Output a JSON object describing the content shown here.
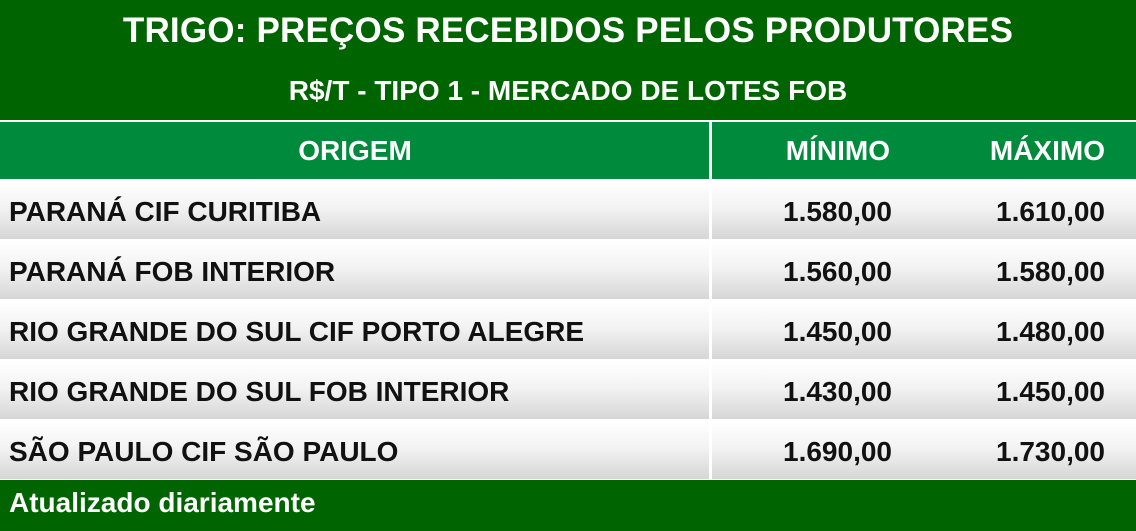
{
  "header": {
    "title": "TRIGO: PREÇOS RECEBIDOS PELOS PRODUTORES",
    "subtitle": "R$/T - TIPO 1 - MERCADO DE LOTES FOB"
  },
  "table": {
    "columns": [
      "ORIGEM",
      "MÍNIMO",
      "MÁXIMO"
    ],
    "rows": [
      {
        "origem": "PARANÁ CIF CURITIBA",
        "minimo": "1.580,00",
        "maximo": "1.610,00"
      },
      {
        "origem": "PARANÁ FOB INTERIOR",
        "minimo": "1.560,00",
        "maximo": "1.580,00"
      },
      {
        "origem": "RIO GRANDE DO SUL CIF PORTO ALEGRE",
        "minimo": "1.450,00",
        "maximo": "1.480,00"
      },
      {
        "origem": "RIO GRANDE DO SUL FOB INTERIOR",
        "minimo": "1.430,00",
        "maximo": "1.450,00"
      },
      {
        "origem": "SÃO PAULO CIF SÃO PAULO",
        "minimo": "1.690,00",
        "maximo": "1.730,00"
      }
    ]
  },
  "footer": {
    "note": "Atualizado diariamente"
  },
  "colors": {
    "title_band": "#006400",
    "header_row": "#008a3c",
    "text_dark": "#111111"
  }
}
